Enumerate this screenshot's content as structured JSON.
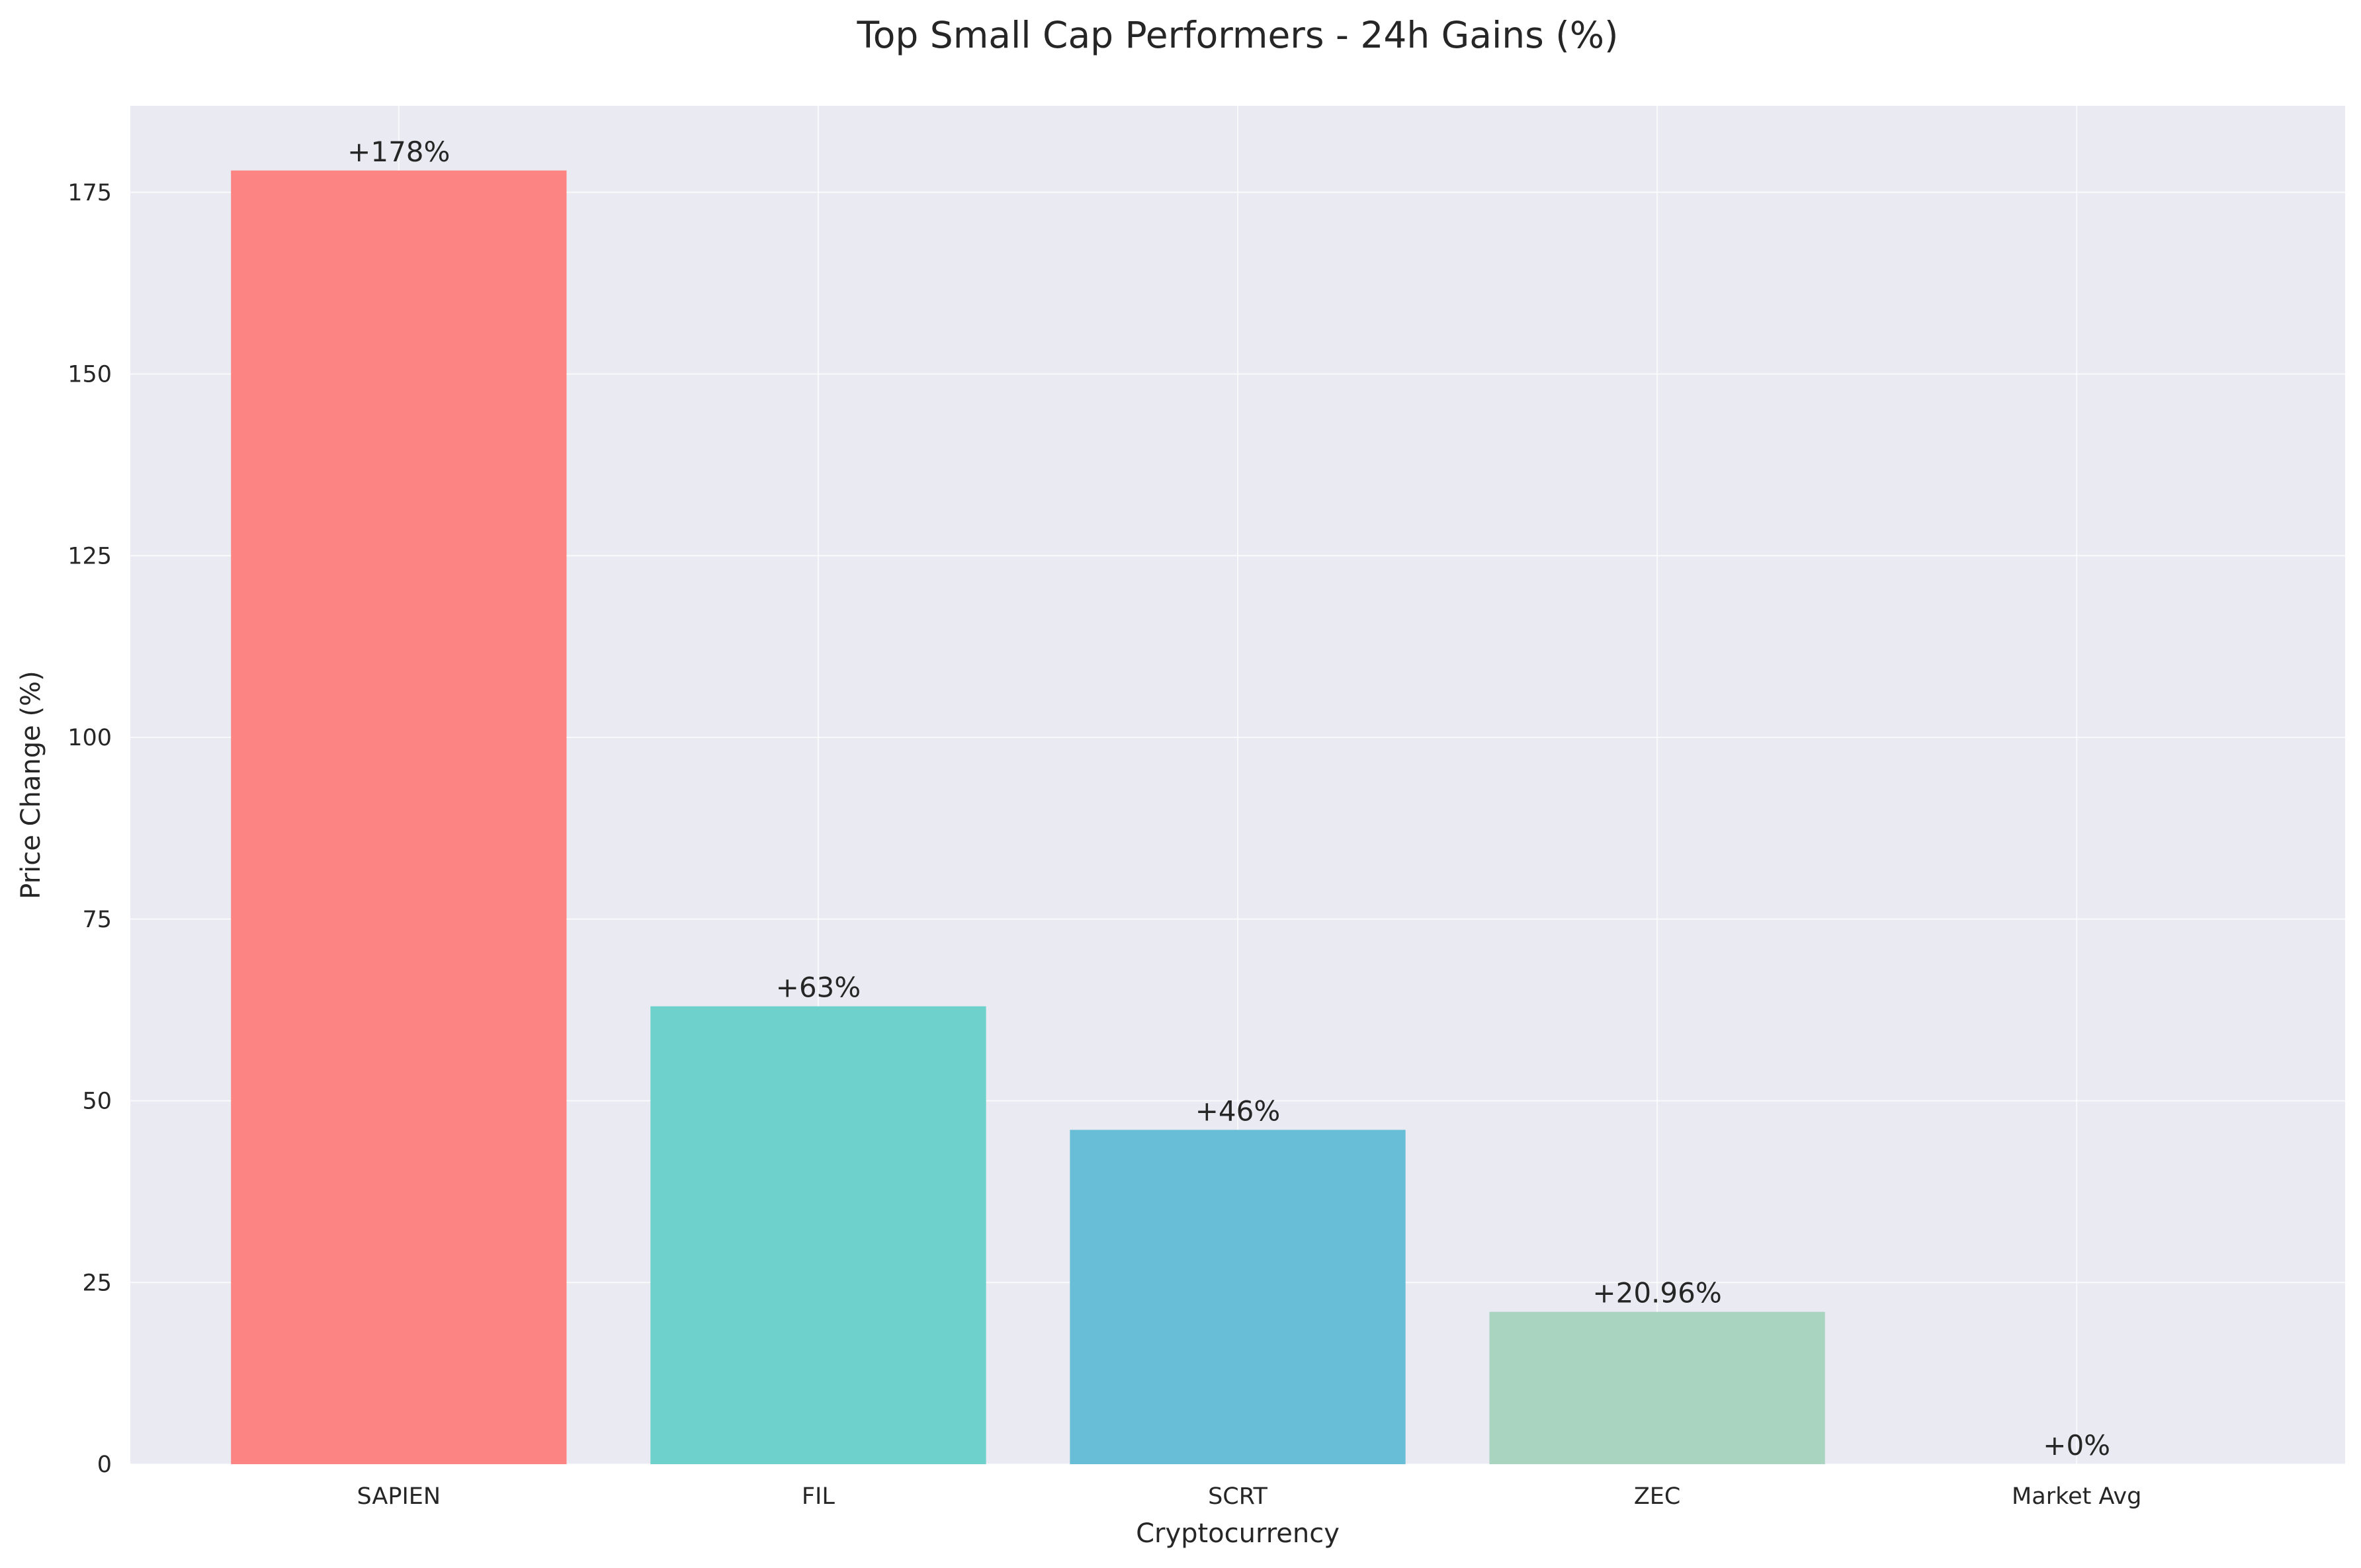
{
  "chart_data": {
    "type": "bar",
    "title": "Top Small Cap Performers - 24h Gains (%)",
    "xlabel": "Cryptocurrency",
    "ylabel": "Price Change (%)",
    "categories": [
      "SAPIEN",
      "FIL",
      "SCRT",
      "ZEC",
      "Market Avg"
    ],
    "values": [
      178,
      63,
      46,
      20.96,
      0
    ],
    "value_labels": [
      "+178%",
      "+63%",
      "+46%",
      "+20.96%",
      "+0%"
    ],
    "colors": [
      "#fc8584",
      "#6fd1cc",
      "#67bed6",
      "#a8d4c0",
      "#f7d37a"
    ],
    "ylim": [
      0,
      186.9
    ],
    "yticks": [
      0,
      25,
      50,
      75,
      100,
      125,
      150,
      175
    ],
    "grid": true,
    "plot_background": "#eaeaf2",
    "legend": "none"
  }
}
